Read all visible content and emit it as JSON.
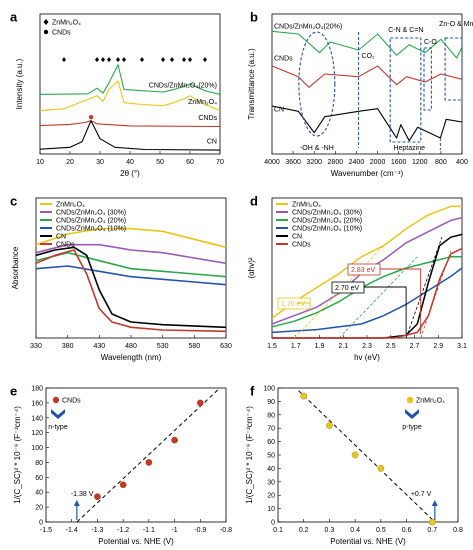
{
  "chart_data": [
    {
      "id": "a",
      "panel_label": "a",
      "type": "line",
      "xlabel": "2θ (°)",
      "ylabel": "Intensity (a.u.)",
      "xlim": [
        10,
        70
      ],
      "xticks": [
        "10",
        "20",
        "30",
        "40",
        "50",
        "60",
        "70"
      ],
      "legend": [
        {
          "label": "ZnMn₂O₄",
          "marker": "diamond"
        },
        {
          "label": "CNDs",
          "marker": "circle"
        }
      ],
      "series": [
        {
          "name": "CNDs/ZnMn₂O₄(20%)",
          "color": "#2aa84a",
          "offset": 0.8,
          "points": [
            [
              10,
              0.02
            ],
            [
              26,
              0.04
            ],
            [
              29,
              0.22
            ],
            [
              31,
              0.06
            ],
            [
              33,
              0.4
            ],
            [
              36,
              0.98
            ],
            [
              38,
              0.18
            ],
            [
              44,
              0.14
            ],
            [
              51,
              0.1
            ],
            [
              54,
              0.16
            ],
            [
              58,
              0.28
            ],
            [
              60,
              0.36
            ],
            [
              65,
              0.14
            ],
            [
              70,
              0.02
            ]
          ]
        },
        {
          "name": "ZnMn₂O₄",
          "color": "#e6c619",
          "offset": 0.58,
          "points": [
            [
              10,
              0.02
            ],
            [
              18,
              0.08
            ],
            [
              29,
              0.5
            ],
            [
              31,
              0.32
            ],
            [
              33,
              0.7
            ],
            [
              36,
              0.98
            ],
            [
              38,
              0.28
            ],
            [
              44,
              0.22
            ],
            [
              51,
              0.18
            ],
            [
              54,
              0.26
            ],
            [
              58,
              0.4
            ],
            [
              60,
              0.5
            ],
            [
              65,
              0.22
            ],
            [
              70,
              0.02
            ]
          ]
        },
        {
          "name": "CNDs",
          "color": "#c0392b",
          "offset": 0.36,
          "points": [
            [
              10,
              0.06
            ],
            [
              20,
              0.1
            ],
            [
              25,
              0.16
            ],
            [
              27,
              0.22
            ],
            [
              29,
              0.12
            ],
            [
              40,
              0.05
            ],
            [
              70,
              0.03
            ]
          ]
        },
        {
          "name": "CN",
          "color": "#000000",
          "offset": 0.04,
          "points": [
            [
              10,
              0.06
            ],
            [
              20,
              0.12
            ],
            [
              24,
              0.3
            ],
            [
              27,
              0.98
            ],
            [
              30,
              0.4
            ],
            [
              35,
              0.12
            ],
            [
              45,
              0.05
            ],
            [
              70,
              0.03
            ]
          ]
        }
      ],
      "marks_diamond_x": [
        18,
        29,
        31,
        33,
        36,
        38,
        44,
        51,
        54,
        58,
        60,
        65
      ],
      "marks_circle_x": [
        27
      ]
    },
    {
      "id": "b",
      "panel_label": "b",
      "type": "line",
      "xlabel": "Wavenumber (cm⁻¹)",
      "ylabel": "Transmittance (a.u.)",
      "xlim": [
        4000,
        400
      ],
      "xticks": [
        "4000",
        "3600",
        "3200",
        "2800",
        "2400",
        "2000",
        "1600",
        "1200",
        "800",
        "400"
      ],
      "series": [
        {
          "name": "CNDs/ZnMn₂O₄(20%)",
          "color": "#2aa84a",
          "offset": 0.72,
          "points": [
            [
              4000,
              0.2
            ],
            [
              3500,
              0.18
            ],
            [
              3100,
              0.04
            ],
            [
              2900,
              0.12
            ],
            [
              2360,
              0.06
            ],
            [
              2000,
              0.18
            ],
            [
              1640,
              0.02
            ],
            [
              1400,
              0.1
            ],
            [
              1100,
              0.04
            ],
            [
              800,
              0.14
            ],
            [
              500,
              0.0
            ],
            [
              400,
              0.08
            ]
          ]
        },
        {
          "name": "CNDs",
          "color": "#c0392b",
          "offset": 0.48,
          "points": [
            [
              4000,
              0.18
            ],
            [
              3500,
              0.1
            ],
            [
              3300,
              0.02
            ],
            [
              3000,
              0.12
            ],
            [
              2360,
              0.1
            ],
            [
              2000,
              0.18
            ],
            [
              1640,
              0.04
            ],
            [
              1450,
              0.1
            ],
            [
              1100,
              0.06
            ],
            [
              800,
              0.12
            ],
            [
              400,
              0.08
            ]
          ]
        },
        {
          "name": "CN",
          "color": "#000000",
          "offset": 0.1,
          "points": [
            [
              4000,
              0.26
            ],
            [
              3500,
              0.22
            ],
            [
              3200,
              0.06
            ],
            [
              3000,
              0.18
            ],
            [
              2360,
              0.22
            ],
            [
              2000,
              0.24
            ],
            [
              1640,
              0.02
            ],
            [
              1560,
              0.12
            ],
            [
              1400,
              0.0
            ],
            [
              1240,
              0.1
            ],
            [
              810,
              0.02
            ],
            [
              700,
              0.16
            ],
            [
              400,
              0.14
            ]
          ]
        }
      ],
      "annotations": [
        "CO₂",
        "C-N & C=N",
        "C-O",
        "Zn-O & Mn-O",
        "-OH & -NH",
        "Heptazine"
      ]
    },
    {
      "id": "c",
      "panel_label": "c",
      "type": "line",
      "xlabel": "Wavelength (nm)",
      "ylabel": "Absorbance",
      "xlim": [
        330,
        630
      ],
      "xticks": [
        "330",
        "380",
        "430",
        "480",
        "530",
        "580",
        "630"
      ],
      "series": [
        {
          "name": "ZnMn₂O₄",
          "color": "#e6c619",
          "points": [
            [
              330,
              0.7
            ],
            [
              380,
              0.78
            ],
            [
              430,
              0.82
            ],
            [
              480,
              0.82
            ],
            [
              530,
              0.8
            ],
            [
              580,
              0.74
            ],
            [
              630,
              0.68
            ]
          ]
        },
        {
          "name": "CNDs/ZnMn₂O₄ (30%)",
          "color": "#9b59b6",
          "points": [
            [
              330,
              0.64
            ],
            [
              380,
              0.7
            ],
            [
              430,
              0.7
            ],
            [
              480,
              0.66
            ],
            [
              530,
              0.64
            ],
            [
              580,
              0.6
            ],
            [
              630,
              0.56
            ]
          ]
        },
        {
          "name": "CNDs/ZnMn₂O₄ (20%)",
          "color": "#2aa84a",
          "points": [
            [
              330,
              0.58
            ],
            [
              380,
              0.64
            ],
            [
              430,
              0.58
            ],
            [
              480,
              0.52
            ],
            [
              530,
              0.5
            ],
            [
              580,
              0.48
            ],
            [
              630,
              0.46
            ]
          ]
        },
        {
          "name": "CNDs/ZnMn₂O₄ (10%)",
          "color": "#2255aa",
          "points": [
            [
              330,
              0.52
            ],
            [
              380,
              0.54
            ],
            [
              430,
              0.5
            ],
            [
              480,
              0.46
            ],
            [
              530,
              0.44
            ],
            [
              580,
              0.42
            ],
            [
              630,
              0.4
            ]
          ]
        },
        {
          "name": "CN",
          "color": "#000000",
          "points": [
            [
              330,
              0.62
            ],
            [
              360,
              0.66
            ],
            [
              390,
              0.68
            ],
            [
              410,
              0.62
            ],
            [
              430,
              0.36
            ],
            [
              450,
              0.18
            ],
            [
              480,
              0.12
            ],
            [
              530,
              0.1
            ],
            [
              630,
              0.08
            ]
          ]
        },
        {
          "name": "CNDs",
          "color": "#c0392b",
          "points": [
            [
              330,
              0.56
            ],
            [
              360,
              0.62
            ],
            [
              390,
              0.66
            ],
            [
              410,
              0.48
            ],
            [
              430,
              0.22
            ],
            [
              450,
              0.12
            ],
            [
              480,
              0.08
            ],
            [
              530,
              0.06
            ],
            [
              630,
              0.05
            ]
          ]
        }
      ]
    },
    {
      "id": "d",
      "panel_label": "d",
      "type": "line",
      "xlabel": "hv (eV)",
      "ylabel": "(αhv)²",
      "xlim": [
        1.5,
        3.2
      ],
      "xticks": [
        "1.5",
        "1.7",
        "1.9",
        "2.1",
        "2.3",
        "2.5",
        "2.7",
        "2.9",
        "3.1"
      ],
      "series": [
        {
          "name": "ZnMn₂O₄",
          "color": "#e6c619",
          "points": [
            [
              1.5,
              0.14
            ],
            [
              1.7,
              0.26
            ],
            [
              1.9,
              0.36
            ],
            [
              2.1,
              0.46
            ],
            [
              2.3,
              0.58
            ],
            [
              2.5,
              0.66
            ],
            [
              2.7,
              0.78
            ],
            [
              2.9,
              0.88
            ],
            [
              3.1,
              0.94
            ],
            [
              3.2,
              0.94
            ]
          ]
        },
        {
          "name": "CNDs/ZnMn₂O₄ (30%)",
          "color": "#9b59b6",
          "points": [
            [
              1.5,
              0.1
            ],
            [
              1.7,
              0.16
            ],
            [
              1.9,
              0.22
            ],
            [
              2.1,
              0.32
            ],
            [
              2.3,
              0.46
            ],
            [
              2.5,
              0.56
            ],
            [
              2.7,
              0.68
            ],
            [
              2.9,
              0.76
            ],
            [
              3.1,
              0.84
            ],
            [
              3.2,
              0.86
            ]
          ]
        },
        {
          "name": "CNDs/ZnMn₂O₄ (20%)",
          "color": "#2aa84a",
          "points": [
            [
              1.5,
              0.08
            ],
            [
              1.7,
              0.12
            ],
            [
              1.9,
              0.18
            ],
            [
              2.1,
              0.26
            ],
            [
              2.3,
              0.36
            ],
            [
              2.5,
              0.44
            ],
            [
              2.7,
              0.5
            ],
            [
              2.9,
              0.54
            ],
            [
              3.1,
              0.58
            ],
            [
              3.2,
              0.58
            ]
          ]
        },
        {
          "name": "CNDs/ZnMn₂O₄ (10%)",
          "color": "#2255aa",
          "points": [
            [
              1.5,
              0.04
            ],
            [
              1.9,
              0.06
            ],
            [
              2.3,
              0.1
            ],
            [
              2.5,
              0.16
            ],
            [
              2.7,
              0.24
            ],
            [
              2.9,
              0.34
            ],
            [
              3.1,
              0.44
            ],
            [
              3.2,
              0.5
            ]
          ]
        },
        {
          "name": "CN",
          "color": "#000000",
          "points": [
            [
              1.5,
              0.0
            ],
            [
              2.5,
              0.0
            ],
            [
              2.7,
              0.02
            ],
            [
              2.8,
              0.1
            ],
            [
              2.9,
              0.4
            ],
            [
              3.0,
              0.66
            ],
            [
              3.1,
              0.72
            ],
            [
              3.2,
              0.74
            ]
          ]
        },
        {
          "name": "CNDs",
          "color": "#c0392b",
          "points": [
            [
              1.5,
              0.0
            ],
            [
              2.6,
              0.0
            ],
            [
              2.8,
              0.04
            ],
            [
              2.9,
              0.16
            ],
            [
              3.0,
              0.42
            ],
            [
              3.1,
              0.6
            ],
            [
              3.2,
              0.64
            ]
          ]
        }
      ],
      "gap_labels": [
        {
          "text": "2.83 eV",
          "color": "#c0392b"
        },
        {
          "text": "2.70 eV",
          "color": "#000000"
        },
        {
          "text": "1.70 eV",
          "color": "#e6c619"
        }
      ]
    },
    {
      "id": "e",
      "panel_label": "e",
      "type": "scatter",
      "xlabel": "Potential vs. NHE (V)",
      "ylabel": "1/(C_SC)² * 10⁻⁹ (F⁻²cm⁻⁴)",
      "xlim": [
        -1.5,
        -0.8
      ],
      "ylim": [
        0,
        180
      ],
      "xticks": [
        "-1.5",
        "-1.4",
        "-1.3",
        "-1.2",
        "-1.1",
        "-1",
        "-0.9",
        "-0.8"
      ],
      "yticks": [
        "0",
        "20",
        "40",
        "60",
        "80",
        "100",
        "120",
        "140",
        "160",
        "180"
      ],
      "legend_label": "CNDs",
      "type_label": "n-type",
      "intercept_label": "-1.38 V",
      "point_color": "#c0392b",
      "x": [
        -1.3,
        -1.2,
        -1.1,
        -1.0,
        -0.9
      ],
      "y": [
        34,
        50,
        80,
        110,
        160
      ],
      "fit": [
        [
          -1.38,
          0
        ],
        [
          -0.83,
          178
        ]
      ]
    },
    {
      "id": "f",
      "panel_label": "f",
      "type": "scatter",
      "xlabel": "Potential vs. NHE (V)",
      "ylabel": "1/(C_SC)² * 10⁻⁹ (F⁻²cm⁻⁴)",
      "xlim": [
        0.1,
        0.8
      ],
      "ylim": [
        0,
        100
      ],
      "xticks": [
        "0.1",
        "0.2",
        "0.3",
        "0.4",
        "0.5",
        "0.6",
        "0.7",
        "0.8"
      ],
      "yticks": [
        "0",
        "10",
        "20",
        "30",
        "40",
        "50",
        "60",
        "70",
        "80",
        "90",
        "100"
      ],
      "legend_label": "ZnMn₂O₄",
      "type_label": "p-type",
      "intercept_label": "+0.7 V",
      "point_color": "#e6c619",
      "x": [
        0.2,
        0.3,
        0.4,
        0.5,
        0.7
      ],
      "y": [
        94,
        72,
        50,
        40,
        0
      ],
      "fit": [
        [
          0.18,
          98
        ],
        [
          0.71,
          0
        ]
      ]
    }
  ]
}
